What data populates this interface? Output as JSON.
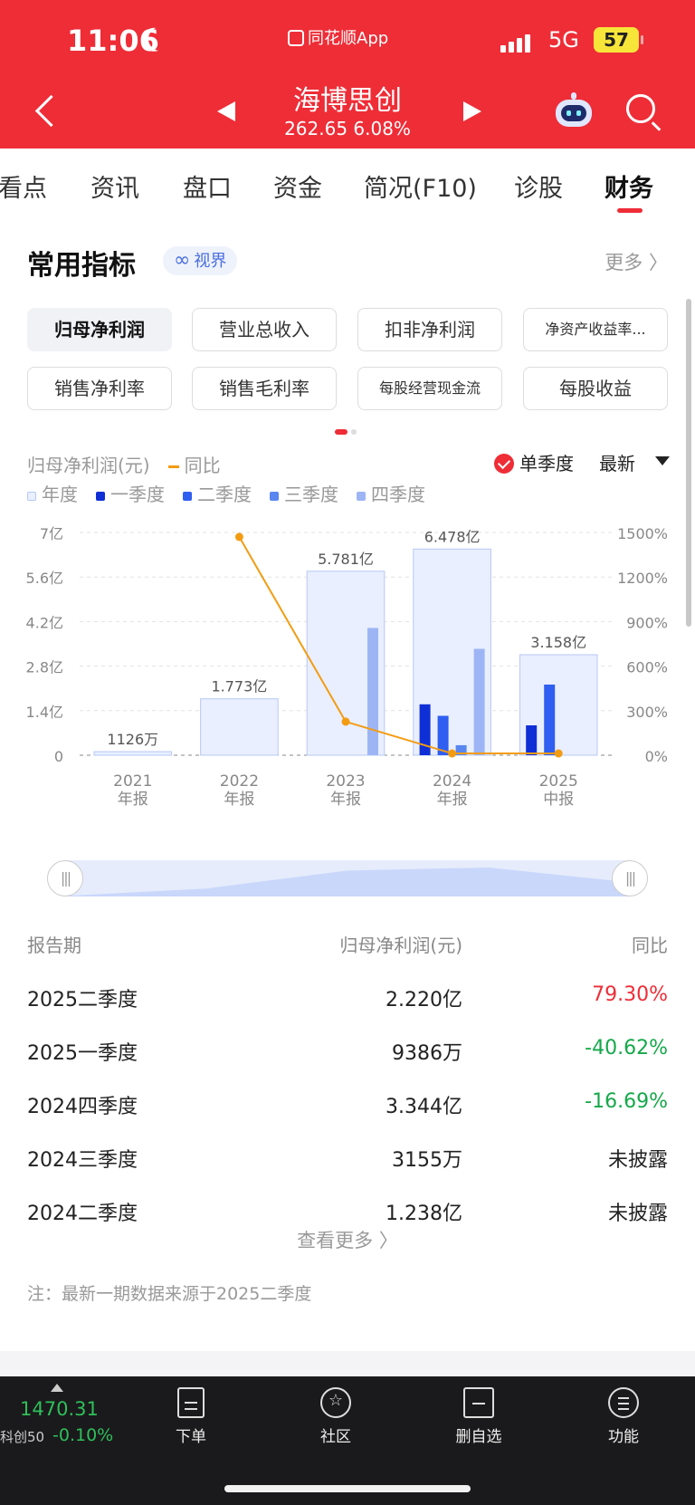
{
  "status_bar": {
    "time": "11:06",
    "app_label": "同花顺App",
    "network": "5G",
    "battery": "57"
  },
  "header": {
    "stock_name": "海博思创",
    "quote": "262.65 6.08%"
  },
  "tabs": [
    {
      "label": "看点"
    },
    {
      "label": "资讯"
    },
    {
      "label": "盘口"
    },
    {
      "label": "资金"
    },
    {
      "label": "简况(F10)"
    },
    {
      "label": "诊股"
    },
    {
      "label": "财务"
    }
  ],
  "section": {
    "title": "常用指标",
    "vision_label": "视界",
    "more_label": "更多 〉"
  },
  "chips": [
    {
      "label": "归母净利润",
      "active": true
    },
    {
      "label": "营业总收入"
    },
    {
      "label": "扣非净利润"
    },
    {
      "label": "净资产收益率..."
    },
    {
      "label": "销售净利率"
    },
    {
      "label": "销售毛利率"
    },
    {
      "label": "每股经营现金流"
    },
    {
      "label": "每股收益"
    }
  ],
  "chart_controls": {
    "metric_label": "归母净利润(元)",
    "yoy_label": "同比",
    "single_quarter_label": "单季度",
    "latest_label": "最新"
  },
  "legend": [
    {
      "label": "年度",
      "color": "#e9efff"
    },
    {
      "label": "一季度",
      "color": "#0f2fd6"
    },
    {
      "label": "二季度",
      "color": "#2f5ef0"
    },
    {
      "label": "三季度",
      "color": "#5a86ef"
    },
    {
      "label": "四季度",
      "color": "#9db5f5"
    }
  ],
  "chart_data": {
    "type": "bar",
    "categories": [
      {
        "year": "2021",
        "label": "年报"
      },
      {
        "year": "2022",
        "label": "年报"
      },
      {
        "year": "2023",
        "label": "年报"
      },
      {
        "year": "2024",
        "label": "年报"
      },
      {
        "year": "2025",
        "label": "中报"
      }
    ],
    "annual": [
      0.1126,
      1.773,
      5.781,
      6.478,
      3.158
    ],
    "annual_labels": [
      "1126万",
      "1.773亿",
      "5.781亿",
      "6.478亿",
      "3.158亿"
    ],
    "quarters": [
      [
        null,
        null,
        null,
        null
      ],
      [
        null,
        null,
        null,
        null
      ],
      [
        null,
        null,
        null,
        4.0
      ],
      [
        1.6,
        1.238,
        0.3155,
        3.344
      ],
      [
        0.9386,
        2.22,
        null,
        null
      ]
    ],
    "yoy_percent": [
      null,
      1470,
      226,
      12,
      12
    ],
    "y_left": {
      "ticks": [
        "7亿",
        "5.6亿",
        "4.2亿",
        "2.8亿",
        "1.4亿",
        "0"
      ],
      "max": 7,
      "unit": "亿"
    },
    "y_right": {
      "ticks": [
        "1500%",
        "1200%",
        "900%",
        "600%",
        "300%",
        "0%"
      ],
      "max": 1500
    },
    "overview": [
      0.1126,
      1.773,
      5.781,
      6.478,
      3.158
    ]
  },
  "table": {
    "headers": [
      "报告期",
      "归母净利润(元)",
      "同比"
    ],
    "rows": [
      {
        "period": "2025二季度",
        "value": "2.220亿",
        "yoy": "79.30%",
        "color": "#ee2d37"
      },
      {
        "period": "2025一季度",
        "value": "9386万",
        "yoy": "-40.62%",
        "color": "#15a84a"
      },
      {
        "period": "2024四季度",
        "value": "3.344亿",
        "yoy": "-16.69%",
        "color": "#15a84a"
      },
      {
        "period": "2024三季度",
        "value": "3155万",
        "yoy": "未披露",
        "color": "#222222"
      },
      {
        "period": "2024二季度",
        "value": "1.238亿",
        "yoy": "未披露",
        "color": "#222222"
      }
    ],
    "view_more": "查看更多 〉",
    "note": "注：最新一期数据来源于2025二季度"
  },
  "bottom": {
    "index_value": "1470.31",
    "index_name": "科创50",
    "index_change": "-0.10%",
    "items": [
      {
        "label": "下单",
        "icon": "order-doc-icon"
      },
      {
        "label": "社区",
        "icon": "community-star-icon"
      },
      {
        "label": "删自选",
        "icon": "remove-watchlist-icon"
      },
      {
        "label": "功能",
        "icon": "menu-icon"
      }
    ]
  },
  "colors": {
    "brand_red": "#ee2d37",
    "up": "#ee2d37",
    "down": "#15a84a",
    "yoy_line": "#f39c12"
  }
}
